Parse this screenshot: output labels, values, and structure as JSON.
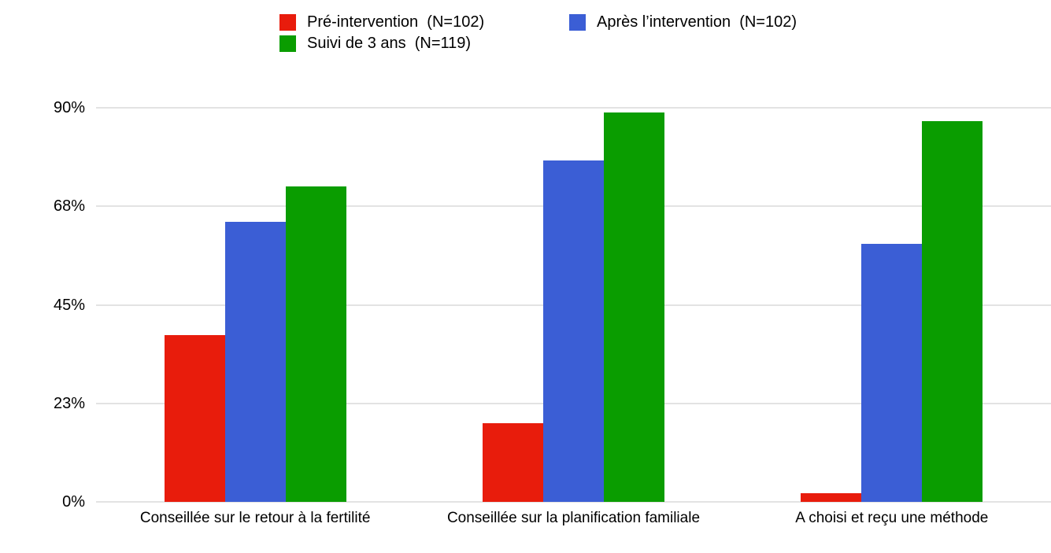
{
  "legend": {
    "items": [
      {
        "label": "Pré-intervention  (N=102)",
        "color": "#e81c0c"
      },
      {
        "label": "Après l’intervention  (N=102)",
        "color": "#3b5ed5"
      },
      {
        "label": "Suivi de 3 ans  (N=119)",
        "color": "#0a9d00"
      }
    ]
  },
  "chart_data": {
    "type": "bar",
    "title": "",
    "categories": [
      "Conseillée sur le retour à la fertilité",
      "Conseillée sur la planification familiale",
      "A choisi et reçu une méthode"
    ],
    "series": [
      {
        "name": "Pré-intervention (N=102)",
        "color": "#e81c0c",
        "values": [
          38,
          18,
          2
        ]
      },
      {
        "name": "Après l’intervention (N=102)",
        "color": "#3b5ed5",
        "values": [
          64,
          78,
          59
        ]
      },
      {
        "name": "Suivi de 3 ans (N=119)",
        "color": "#0a9d00",
        "values": [
          72,
          89,
          87
        ]
      }
    ],
    "unit": "%",
    "xlabel": "",
    "ylabel": "",
    "ylim": [
      0,
      90
    ],
    "y_tick_labels": [
      "0%",
      "23%",
      "45%",
      "68%",
      "90%"
    ],
    "grid": true,
    "legend_position": "top",
    "colors": {
      "red": "#e81c0c",
      "blue": "#3b5ed5",
      "green": "#0a9d00",
      "gridline": "#e3e3e3"
    }
  }
}
